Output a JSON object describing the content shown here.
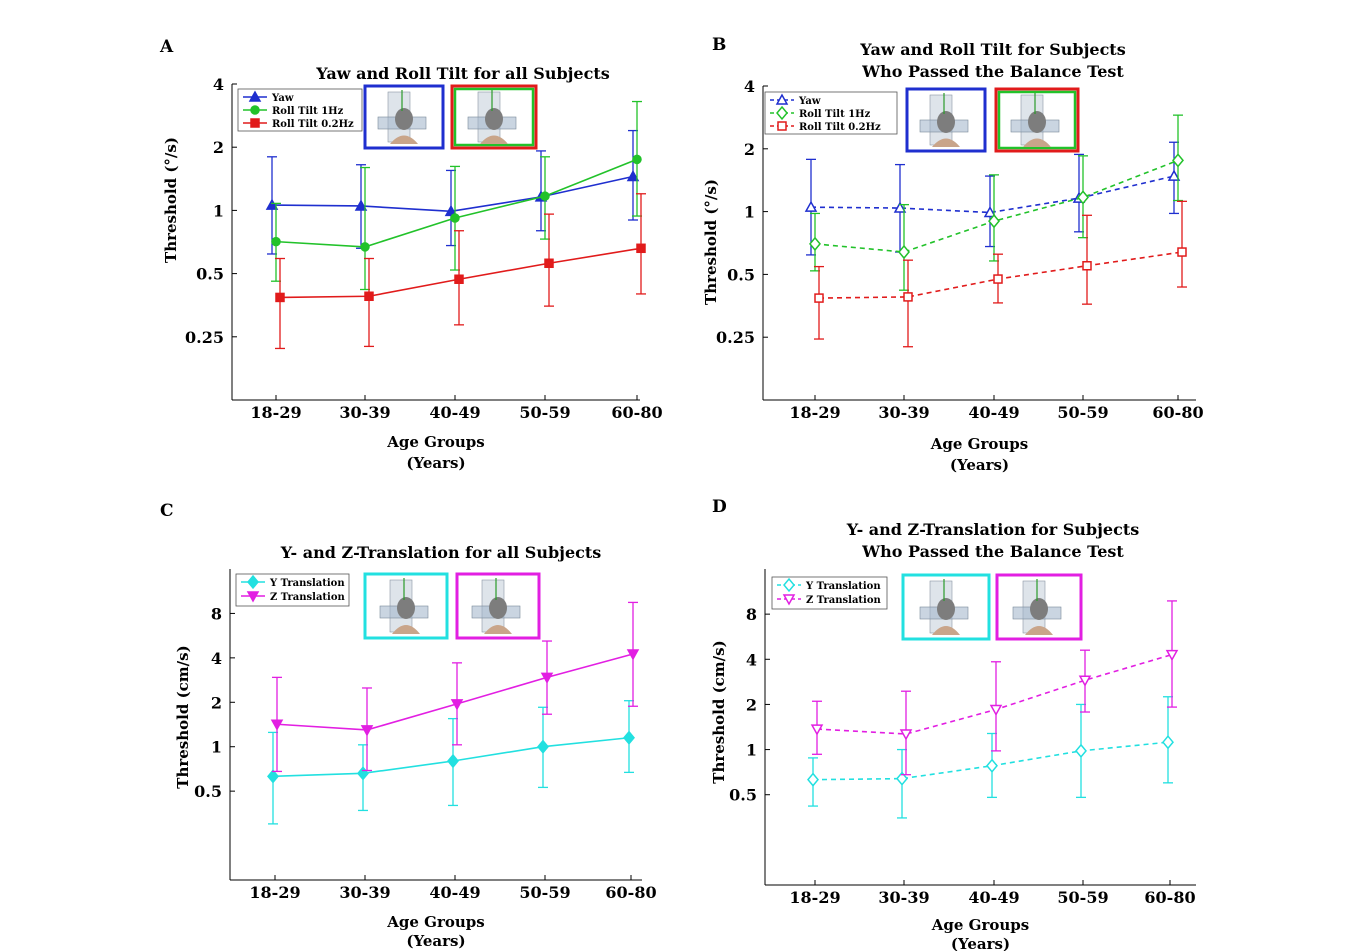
{
  "chart_data": [
    {
      "panel_letter": "A",
      "type": "line",
      "title": [
        "Yaw and Roll Tilt for all Subjects"
      ],
      "xlabel": [
        "Age Groups",
        "(Years)"
      ],
      "ylabel": "Threshold (°/s)",
      "yscale": "log",
      "ylim": [
        0.125,
        4
      ],
      "yticks": [
        0.25,
        0.5,
        1,
        2,
        4
      ],
      "ytick_labels": [
        "0.25",
        "0.5",
        "1",
        "2",
        "4"
      ],
      "categories": [
        "18-29",
        "30-39",
        "40-49",
        "50-59",
        "60-80"
      ],
      "line_style": "solid",
      "marker_fill": "filled",
      "legend_position": "top-left",
      "series": [
        {
          "name": "Yaw",
          "color": "#1f2fcf",
          "marker": "triangle-up",
          "values": [
            1.06,
            1.05,
            0.99,
            1.16,
            1.45
          ],
          "err_low": [
            0.62,
            0.66,
            0.68,
            0.8,
            0.9
          ],
          "err_high": [
            1.8,
            1.65,
            1.55,
            1.92,
            2.4
          ]
        },
        {
          "name": "Roll Tilt 1Hz",
          "color": "#22c22a",
          "marker": "circle",
          "values": [
            0.71,
            0.67,
            0.92,
            1.17,
            1.75
          ],
          "err_low": [
            0.46,
            0.42,
            0.52,
            0.73,
            0.94
          ],
          "err_high": [
            1.08,
            1.6,
            1.62,
            1.8,
            3.3
          ]
        },
        {
          "name": "Roll Tilt 0.2Hz",
          "color": "#e11b1b",
          "marker": "square",
          "values": [
            0.385,
            0.39,
            0.47,
            0.56,
            0.66
          ],
          "err_low": [
            0.22,
            0.225,
            0.285,
            0.35,
            0.4
          ],
          "err_high": [
            0.59,
            0.59,
            0.8,
            0.96,
            1.2
          ]
        }
      ]
    },
    {
      "panel_letter": "B",
      "type": "line",
      "title": [
        "Yaw and Roll Tilt for Subjects",
        "Who Passed the Balance Test"
      ],
      "xlabel": [
        "Age Groups",
        "(Years)"
      ],
      "ylabel": "Threshold (°/s)",
      "yscale": "log",
      "ylim": [
        0.125,
        4
      ],
      "yticks": [
        0.25,
        0.5,
        1,
        2,
        4
      ],
      "ytick_labels": [
        "0.25",
        "0.5",
        "1",
        "2",
        "4"
      ],
      "categories": [
        "18-29",
        "30-39",
        "40-49",
        "50-59",
        "60-80"
      ],
      "line_style": "dashed",
      "marker_fill": "open",
      "legend_position": "top-left",
      "series": [
        {
          "name": "Yaw",
          "color": "#1f2fcf",
          "marker": "triangle-up",
          "values": [
            1.05,
            1.04,
            0.99,
            1.16,
            1.48
          ],
          "err_low": [
            0.62,
            0.64,
            0.68,
            0.8,
            0.98
          ],
          "err_high": [
            1.78,
            1.68,
            1.48,
            1.88,
            2.15
          ]
        },
        {
          "name": "Roll Tilt 1Hz",
          "color": "#22c22a",
          "marker": "diamond",
          "values": [
            0.7,
            0.64,
            0.9,
            1.17,
            1.76
          ],
          "err_low": [
            0.52,
            0.42,
            0.58,
            0.75,
            1.13
          ],
          "err_high": [
            0.98,
            1.08,
            1.5,
            1.85,
            2.9
          ]
        },
        {
          "name": "Roll Tilt 0.2Hz",
          "color": "#e11b1b",
          "marker": "square",
          "values": [
            0.385,
            0.39,
            0.475,
            0.55,
            0.64
          ],
          "err_low": [
            0.245,
            0.225,
            0.365,
            0.36,
            0.435
          ],
          "err_high": [
            0.545,
            0.585,
            0.625,
            0.96,
            1.12
          ]
        }
      ]
    },
    {
      "panel_letter": "C",
      "type": "line",
      "title": [
        "Y- and Z-Translation for all Subjects"
      ],
      "xlabel": [
        "Age Groups",
        "(Years)"
      ],
      "ylabel": "Threshold (cm/s)",
      "yscale": "log",
      "ylim": [
        0.125,
        16
      ],
      "yticks": [
        0.5,
        1,
        2,
        4,
        8
      ],
      "ytick_labels": [
        "0.5",
        "1",
        "2",
        "4",
        "8"
      ],
      "categories": [
        "18-29",
        "30-39",
        "40-49",
        "50-59",
        "60-80"
      ],
      "line_style": "solid",
      "marker_fill": "filled",
      "legend_position": "top-left",
      "series": [
        {
          "name": "Y Translation",
          "color": "#22e0e0",
          "marker": "diamond",
          "values": [
            0.63,
            0.66,
            0.8,
            1.0,
            1.15
          ],
          "err_low": [
            0.3,
            0.37,
            0.4,
            0.53,
            0.67
          ],
          "err_high": [
            1.25,
            1.03,
            1.55,
            1.85,
            2.05
          ]
        },
        {
          "name": "Z Translation",
          "color": "#e21fe2",
          "marker": "triangle-down",
          "values": [
            1.42,
            1.3,
            1.95,
            2.95,
            4.25
          ],
          "err_low": [
            0.68,
            0.69,
            1.03,
            1.66,
            1.88
          ],
          "err_high": [
            2.95,
            2.5,
            3.7,
            5.2,
            9.5
          ]
        }
      ]
    },
    {
      "panel_letter": "D",
      "type": "line",
      "title": [
        "Y- and Z-Translation for Subjects",
        "Who Passed the Balance Test"
      ],
      "xlabel": [
        "Age Groups",
        "(Years)"
      ],
      "ylabel": "Threshold (cm/s)",
      "yscale": "log",
      "ylim": [
        0.125,
        16
      ],
      "yticks": [
        0.5,
        1,
        2,
        4,
        8
      ],
      "ytick_labels": [
        "0.5",
        "1",
        "2",
        "4",
        "8"
      ],
      "categories": [
        "18-29",
        "30-39",
        "40-49",
        "50-59",
        "60-80"
      ],
      "line_style": "dashed",
      "marker_fill": "open",
      "legend_position": "top-left",
      "series": [
        {
          "name": "Y Translation",
          "color": "#22e0e0",
          "marker": "diamond",
          "values": [
            0.63,
            0.64,
            0.78,
            0.98,
            1.12
          ],
          "err_low": [
            0.42,
            0.35,
            0.48,
            0.48,
            0.6
          ],
          "err_high": [
            0.88,
            1.0,
            1.28,
            2.0,
            2.25
          ]
        },
        {
          "name": "Z Translation",
          "color": "#e21fe2",
          "marker": "triangle-down",
          "values": [
            1.37,
            1.27,
            1.85,
            2.9,
            4.3
          ],
          "err_low": [
            0.93,
            0.68,
            0.98,
            1.78,
            1.92
          ],
          "err_high": [
            2.1,
            2.45,
            3.85,
            4.6,
            9.8
          ]
        }
      ]
    }
  ]
}
